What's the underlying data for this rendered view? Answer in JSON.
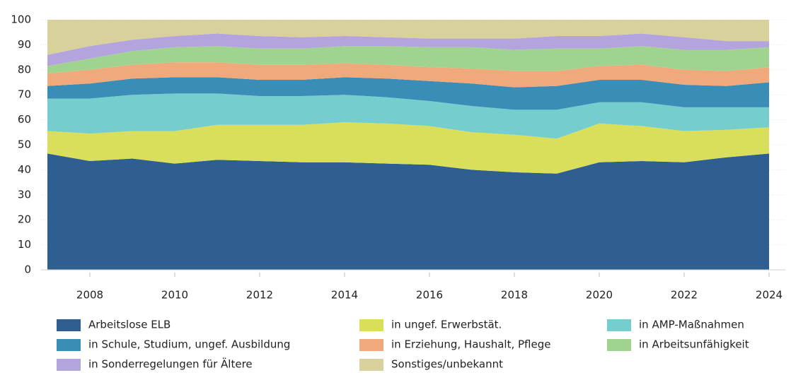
{
  "chart_data": {
    "type": "stacked-area",
    "x": [
      2007,
      2008,
      2009,
      2010,
      2011,
      2012,
      2013,
      2014,
      2015,
      2016,
      2017,
      2018,
      2019,
      2020,
      2021,
      2022,
      2023,
      2024
    ],
    "xlim": [
      2007,
      2024
    ],
    "xticks": [
      2008,
      2010,
      2012,
      2014,
      2016,
      2018,
      2020,
      2022,
      2024
    ],
    "ylim": [
      0,
      100
    ],
    "yticks": [
      0,
      10,
      20,
      30,
      40,
      50,
      60,
      70,
      80,
      90,
      100
    ],
    "series": [
      {
        "name": "Arbeitslose ELB",
        "color": "#2f5f91",
        "values": [
          46.5,
          43.5,
          44.5,
          42.5,
          44,
          43.5,
          43,
          43,
          42.5,
          42,
          40,
          39,
          38.5,
          43,
          43.5,
          43,
          45,
          46.5
        ]
      },
      {
        "name": "in ungef. Erwerbstät.",
        "color": "#d9df5b",
        "values": [
          9,
          11,
          11,
          13,
          14,
          14.5,
          15,
          16,
          16,
          15.5,
          15,
          15,
          14,
          15.5,
          14,
          12.5,
          11,
          10.5
        ]
      },
      {
        "name": "in AMP-Maßnahmen",
        "color": "#76cdcd",
        "values": [
          13,
          14,
          14.5,
          15,
          12.5,
          11.5,
          11.5,
          11,
          10.5,
          10,
          10.5,
          10,
          11.5,
          8.5,
          9.5,
          9.5,
          9,
          8
        ]
      },
      {
        "name": "in Schule, Studium, ungef. Ausbildung",
        "color": "#3a8db6",
        "values": [
          5,
          6,
          6.5,
          6.5,
          6.5,
          6.5,
          6.5,
          7,
          7.5,
          8,
          9,
          9,
          9.5,
          9,
          9,
          9,
          8.5,
          10
        ]
      },
      {
        "name": "in Erziehung, Haushalt, Pflege",
        "color": "#f0a97a",
        "values": [
          5,
          5.5,
          5.5,
          6,
          6,
          6,
          6,
          5.5,
          5.5,
          5.5,
          6,
          6.5,
          6,
          5.5,
          6,
          6,
          6,
          6
        ]
      },
      {
        "name": "in Arbeitsunfähigkeit",
        "color": "#a0d390",
        "values": [
          3,
          4.5,
          5.5,
          6,
          6.5,
          6.5,
          6.5,
          7,
          7.5,
          8,
          8.5,
          8.5,
          9,
          7,
          7.5,
          8,
          8.5,
          8
        ]
      },
      {
        "name": "in Sonderregelungen für Ältere",
        "color": "#b4a4de",
        "values": [
          4.5,
          5,
          4.5,
          4.5,
          5,
          5,
          4.5,
          4,
          3.5,
          3.5,
          3.5,
          4.5,
          5,
          5,
          5,
          5,
          3.5,
          2.5
        ]
      },
      {
        "name": "Sonstiges/unbekannt",
        "color": "#d9d19c",
        "values": [
          14,
          10.5,
          8,
          6.5,
          5.5,
          6.5,
          7,
          6.5,
          7,
          7.5,
          7.5,
          7.5,
          6.5,
          6.5,
          5.5,
          7,
          8.5,
          8.5
        ]
      }
    ]
  }
}
